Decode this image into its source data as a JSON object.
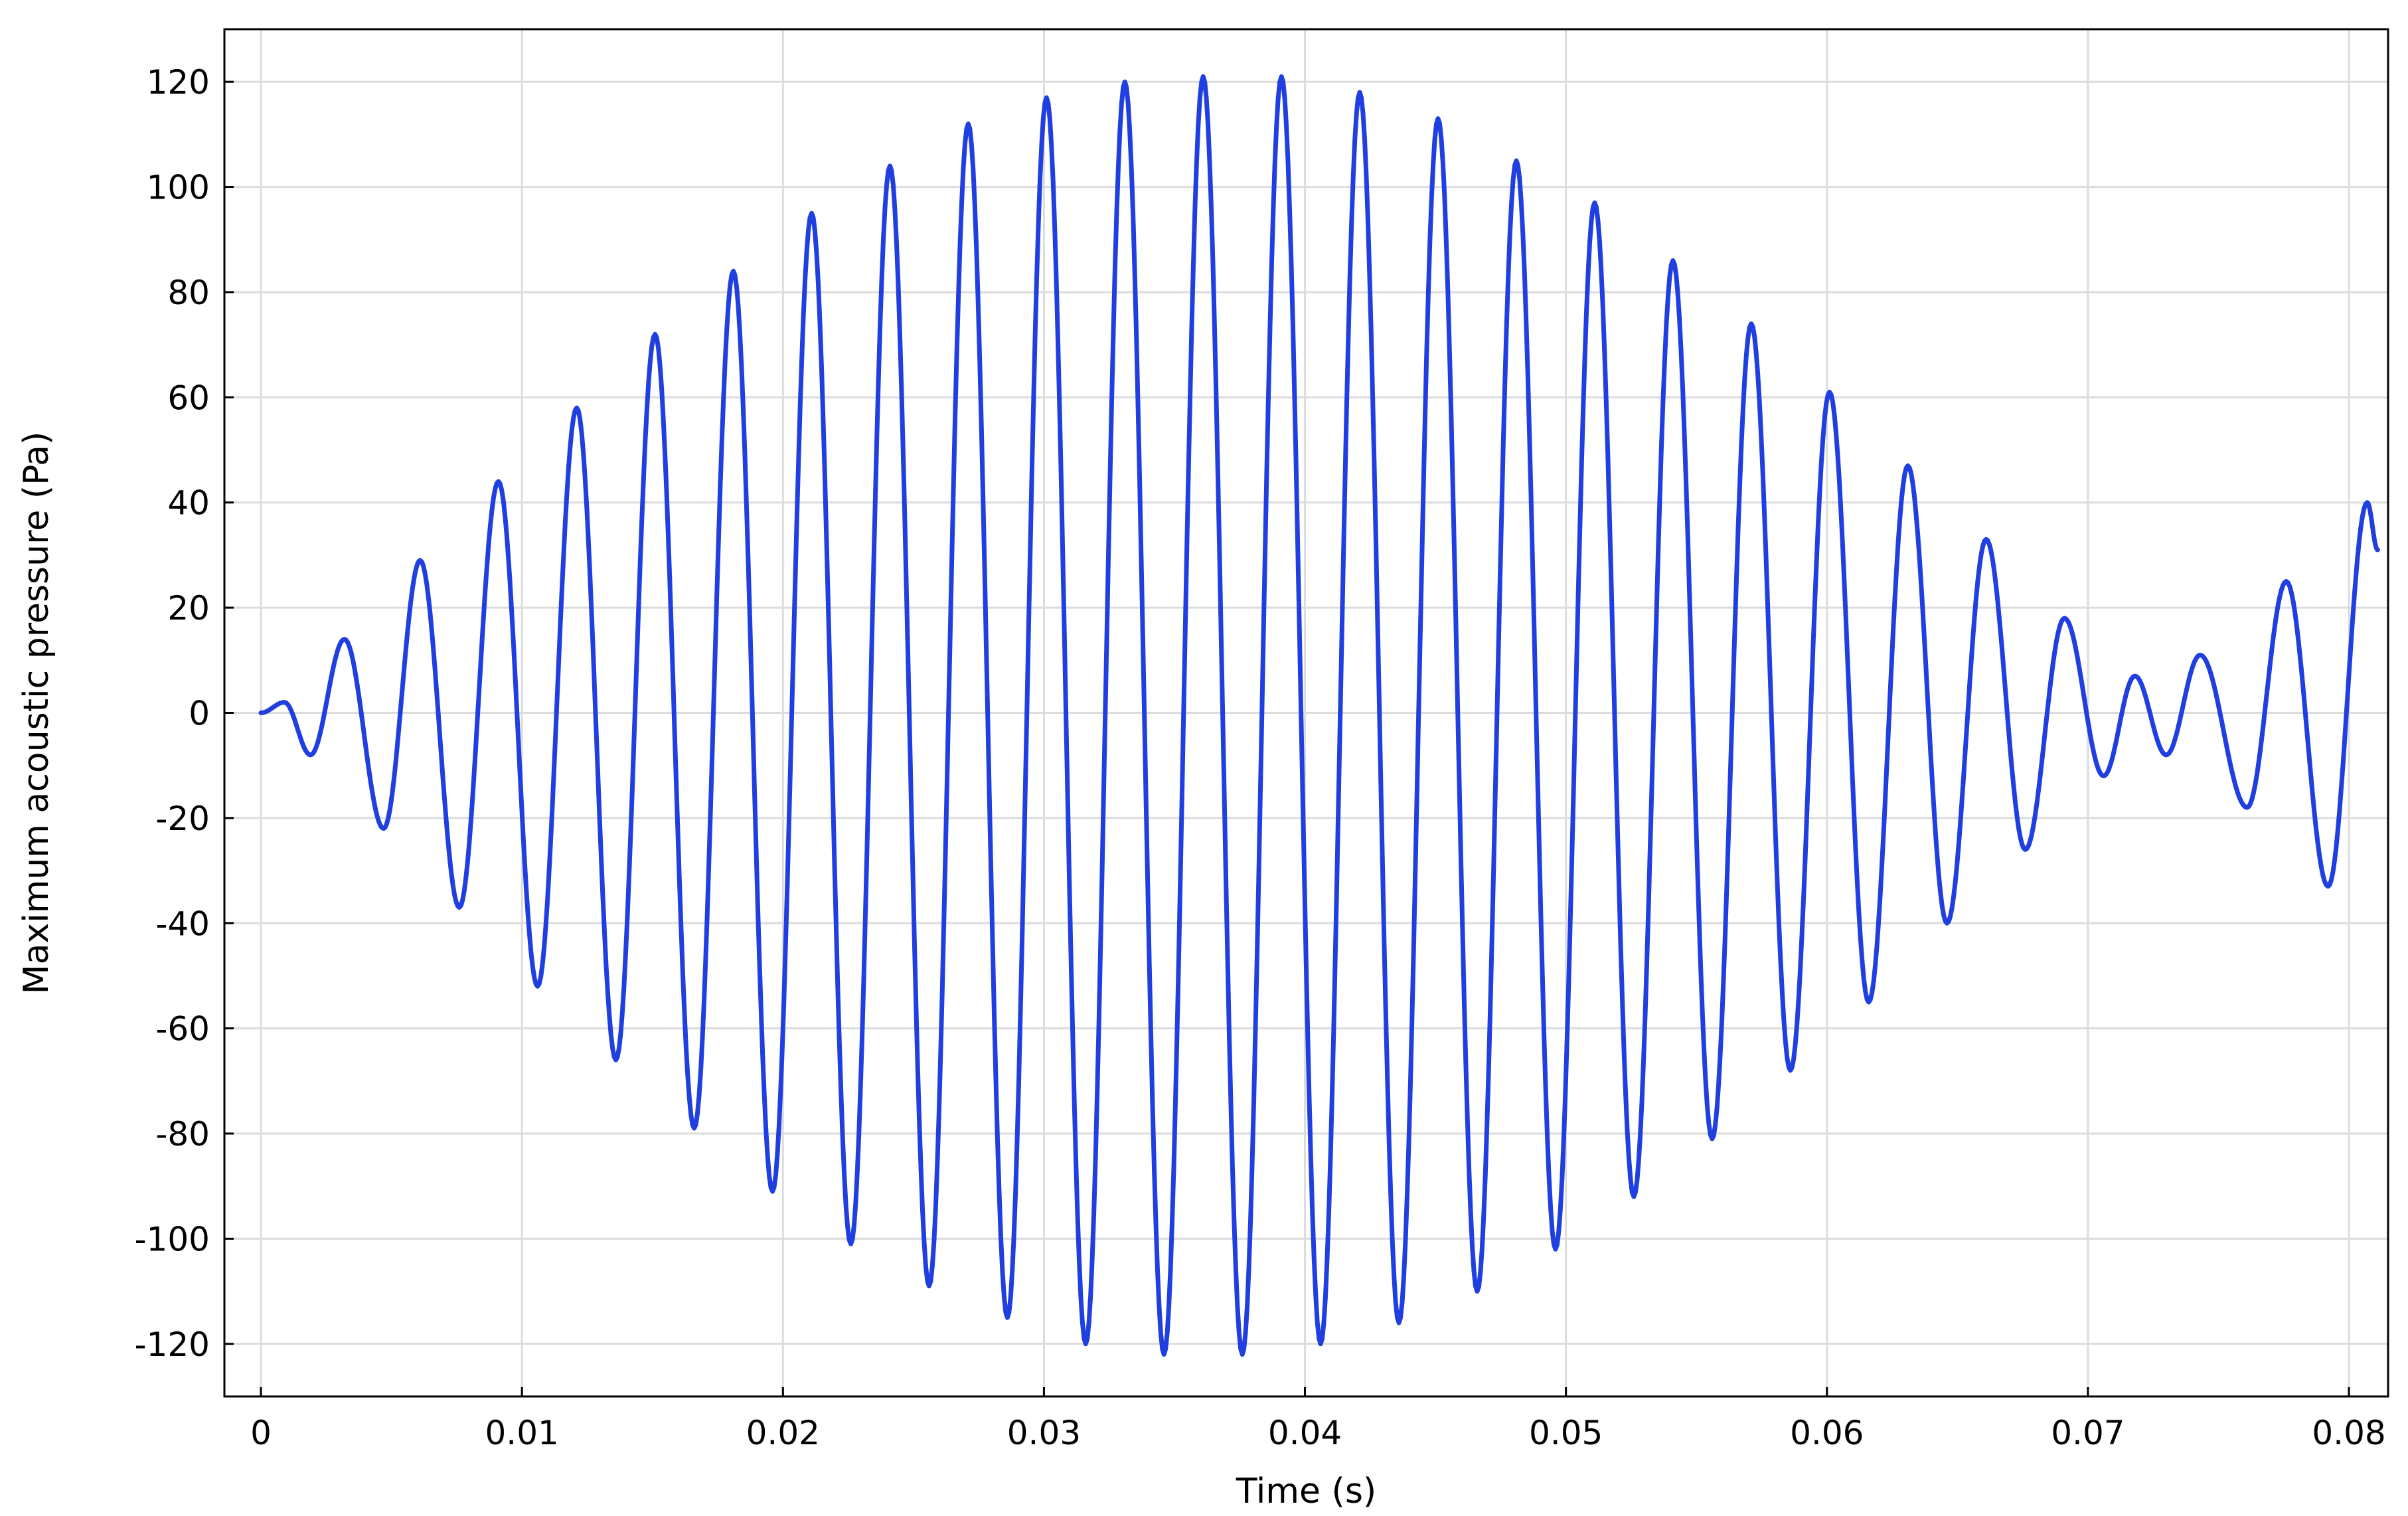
{
  "chart_data": {
    "type": "line",
    "title": "",
    "xlabel": "Time (s)",
    "ylabel": "Maximum acoustic pressure (Pa)",
    "xlim": [
      -0.0014,
      0.0815
    ],
    "ylim": [
      -130,
      130
    ],
    "grid": true,
    "legend": "none",
    "x_ticks": [
      0,
      0.01,
      0.02,
      0.03,
      0.04,
      0.05,
      0.06,
      0.07,
      0.08
    ],
    "x_tick_labels": [
      "0",
      "0.01",
      "0.02",
      "0.03",
      "0.04",
      "0.05",
      "0.06",
      "0.07",
      "0.08"
    ],
    "y_ticks": [
      -120,
      -100,
      -80,
      -60,
      -40,
      -20,
      0,
      20,
      40,
      60,
      80,
      100,
      120
    ],
    "y_tick_labels": [
      "-120",
      "-100",
      "-80",
      "-60",
      "-40",
      "-20",
      "0",
      "20",
      "40",
      "60",
      "80",
      "100",
      "120"
    ],
    "series": [
      {
        "color": "#1f3fe0",
        "extrema": [
          [
            0,
            0
          ],
          [
            0.0009,
            2
          ],
          [
            0.0019,
            -8
          ],
          [
            0.0032,
            14
          ],
          [
            0.0047,
            -22
          ],
          [
            0.0061,
            29
          ],
          [
            0.0076,
            -37
          ],
          [
            0.0091,
            44
          ],
          [
            0.0106,
            -52
          ],
          [
            0.0121,
            58
          ],
          [
            0.0136,
            -66
          ],
          [
            0.0151,
            72
          ],
          [
            0.0166,
            -79
          ],
          [
            0.0181,
            84
          ],
          [
            0.0196,
            -91
          ],
          [
            0.0211,
            95
          ],
          [
            0.0226,
            -101
          ],
          [
            0.0241,
            104
          ],
          [
            0.0256,
            -109
          ],
          [
            0.0271,
            112
          ],
          [
            0.0286,
            -115
          ],
          [
            0.0301,
            117
          ],
          [
            0.0316,
            -120
          ],
          [
            0.0331,
            120
          ],
          [
            0.0346,
            -122
          ],
          [
            0.0361,
            121
          ],
          [
            0.0376,
            -122
          ],
          [
            0.0391,
            121
          ],
          [
            0.0406,
            -120
          ],
          [
            0.0421,
            118
          ],
          [
            0.0436,
            -116
          ],
          [
            0.0451,
            113
          ],
          [
            0.0466,
            -110
          ],
          [
            0.0481,
            105
          ],
          [
            0.0496,
            -102
          ],
          [
            0.0511,
            97
          ],
          [
            0.0526,
            -92
          ],
          [
            0.0541,
            86
          ],
          [
            0.0556,
            -81
          ],
          [
            0.0571,
            74
          ],
          [
            0.0586,
            -68
          ],
          [
            0.0601,
            61
          ],
          [
            0.0616,
            -55
          ],
          [
            0.0631,
            47
          ],
          [
            0.0646,
            -40
          ],
          [
            0.0661,
            33
          ],
          [
            0.0676,
            -26
          ],
          [
            0.0691,
            18
          ],
          [
            0.0706,
            -12
          ],
          [
            0.0718,
            7
          ],
          [
            0.073,
            -8
          ],
          [
            0.0743,
            11
          ],
          [
            0.0761,
            -18
          ],
          [
            0.0776,
            25
          ],
          [
            0.0792,
            -33
          ],
          [
            0.0807,
            40
          ],
          [
            0.0811,
            31
          ]
        ]
      }
    ]
  }
}
